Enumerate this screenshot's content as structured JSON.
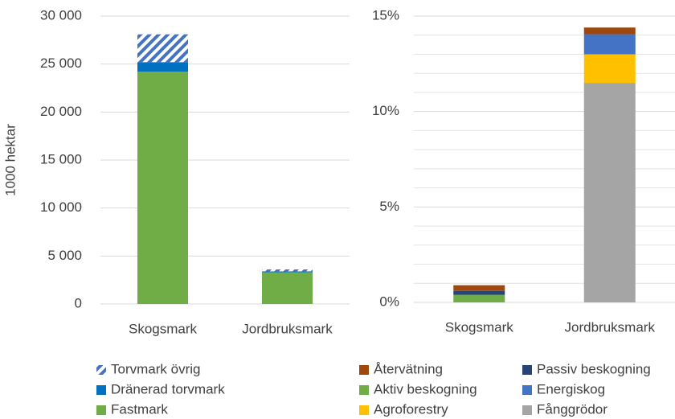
{
  "chart_data": [
    {
      "type": "bar",
      "stacked": true,
      "y_label": "1000 hektar",
      "categories": [
        "Skogsmark",
        "Jordbruksmark"
      ],
      "series": [
        {
          "name": "Torvmark övrig",
          "color": "#4472c4",
          "pattern": "hatch",
          "values": [
            2900,
            200
          ]
        },
        {
          "name": "Dränerad torvmark",
          "color": "#0070c0",
          "values": [
            1000,
            100
          ]
        },
        {
          "name": "Fastmark",
          "color": "#70ad47",
          "values": [
            24200,
            3300
          ]
        }
      ],
      "ylim": [
        0,
        30000
      ],
      "yticks": [
        0,
        {
          "value": 5000,
          "label": "5 000"
        },
        {
          "value": 10000,
          "label": "10 000"
        },
        {
          "value": 15000,
          "label": "15 000"
        },
        {
          "value": 20000,
          "label": "20 000"
        },
        {
          "value": 25000,
          "label": "25 000"
        },
        {
          "value": 30000,
          "label": "30 000"
        }
      ],
      "grid": true
    },
    {
      "type": "bar",
      "stacked": true,
      "categories": [
        "Skogsmark",
        "Jordbruksmark"
      ],
      "series": [
        {
          "name": "Återvätning",
          "color": "#9e480e",
          "values": [
            0.3,
            0.35
          ]
        },
        {
          "name": "Passiv beskogning",
          "color": "#264478",
          "values": [
            0.2,
            0
          ]
        },
        {
          "name": "Aktiv beskogning",
          "color": "#70ad47",
          "values": [
            0.4,
            0
          ]
        },
        {
          "name": "Energiskog",
          "color": "#4472c4",
          "values": [
            0,
            1.05
          ]
        },
        {
          "name": "Agroforestry",
          "color": "#ffc000",
          "values": [
            0,
            1.5
          ]
        },
        {
          "name": "Fånggrödor",
          "color": "#a5a5a5",
          "values": [
            0,
            11.5
          ]
        }
      ],
      "ylim": [
        0,
        15
      ],
      "yticks": [
        {
          "value": 0,
          "label": "0%"
        },
        {
          "value": 5,
          "label": "5%"
        },
        {
          "value": 10,
          "label": "10%"
        },
        {
          "value": 15,
          "label": "15%"
        }
      ],
      "minor_yticks": [
        1,
        2,
        3,
        4,
        6,
        7,
        8,
        9,
        11,
        12,
        13,
        14
      ],
      "grid": true
    }
  ]
}
